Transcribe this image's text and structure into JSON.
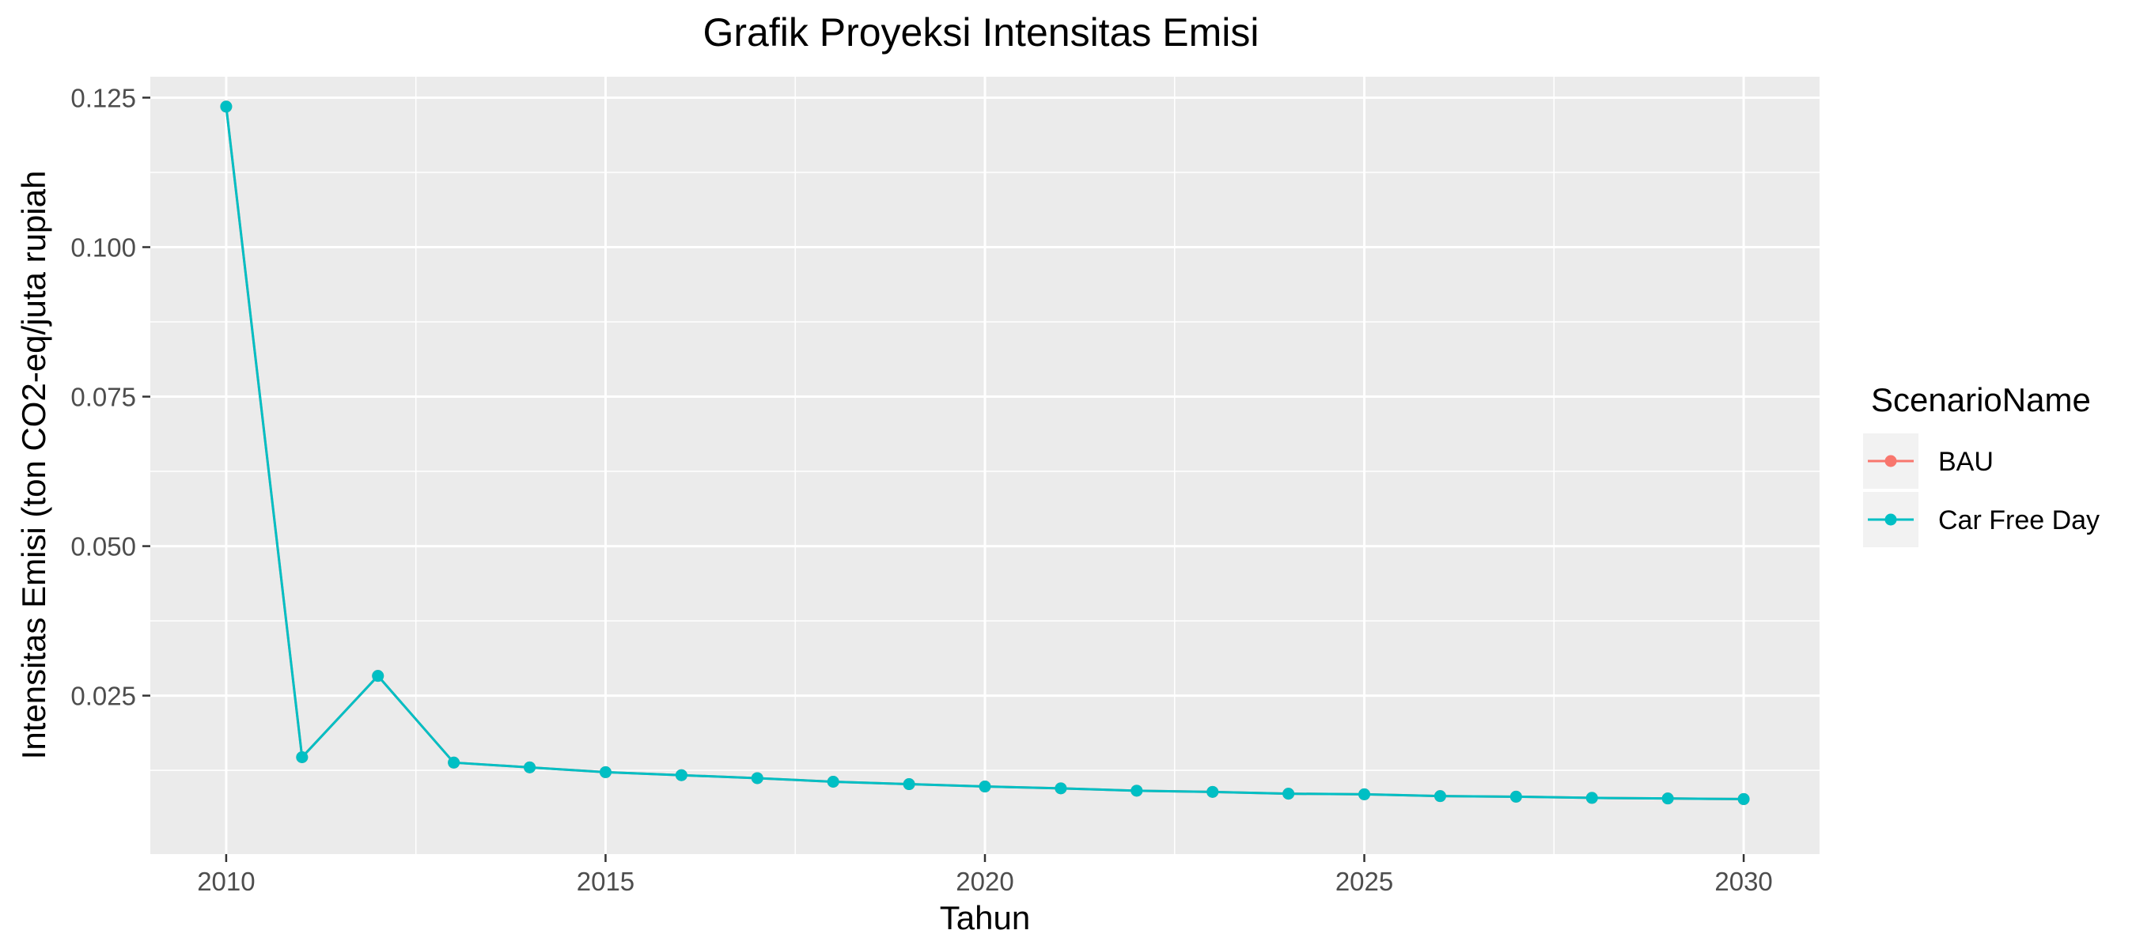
{
  "chart_data": {
    "type": "line",
    "title": "Grafik Proyeksi Intensitas Emisi",
    "xlabel": "Tahun",
    "ylabel": "Intensitas Emisi (ton CO2-eq/juta rupiah",
    "xlim": [
      2009,
      2031
    ],
    "ylim": [
      -0.0015,
      0.1285
    ],
    "x_ticks": [
      2010,
      2015,
      2020,
      2025,
      2030
    ],
    "y_ticks": [
      0.025,
      0.05,
      0.075,
      0.1,
      0.125
    ],
    "x_tick_labels": [
      "2010",
      "2015",
      "2020",
      "2025",
      "2030"
    ],
    "y_tick_labels": [
      "0.025",
      "0.050",
      "0.075",
      "0.100",
      "0.125"
    ],
    "grid": true,
    "legend": {
      "title": "ScenarioName",
      "position": "right"
    },
    "x": [
      2010,
      2011,
      2012,
      2013,
      2014,
      2015,
      2016,
      2017,
      2018,
      2019,
      2020,
      2021,
      2022,
      2023,
      2024,
      2025,
      2026,
      2027,
      2028,
      2029,
      2030
    ],
    "series": [
      {
        "name": "BAU",
        "color": "#F8766D",
        "values": [
          0.1235,
          0.0147,
          0.0283,
          0.0138,
          0.013,
          0.0122,
          0.0117,
          0.0112,
          0.0106,
          0.0102,
          0.0098,
          0.0095,
          0.0091,
          0.0089,
          0.0086,
          0.0085,
          0.0082,
          0.0081,
          0.0079,
          0.0078,
          0.0077
        ]
      },
      {
        "name": "Car Free Day",
        "color": "#00BFC4",
        "values": [
          0.1235,
          0.0147,
          0.0283,
          0.0138,
          0.013,
          0.0122,
          0.0117,
          0.0112,
          0.0106,
          0.0102,
          0.0098,
          0.0095,
          0.0091,
          0.0089,
          0.0086,
          0.0085,
          0.0082,
          0.0081,
          0.0079,
          0.0078,
          0.0077
        ]
      }
    ]
  }
}
